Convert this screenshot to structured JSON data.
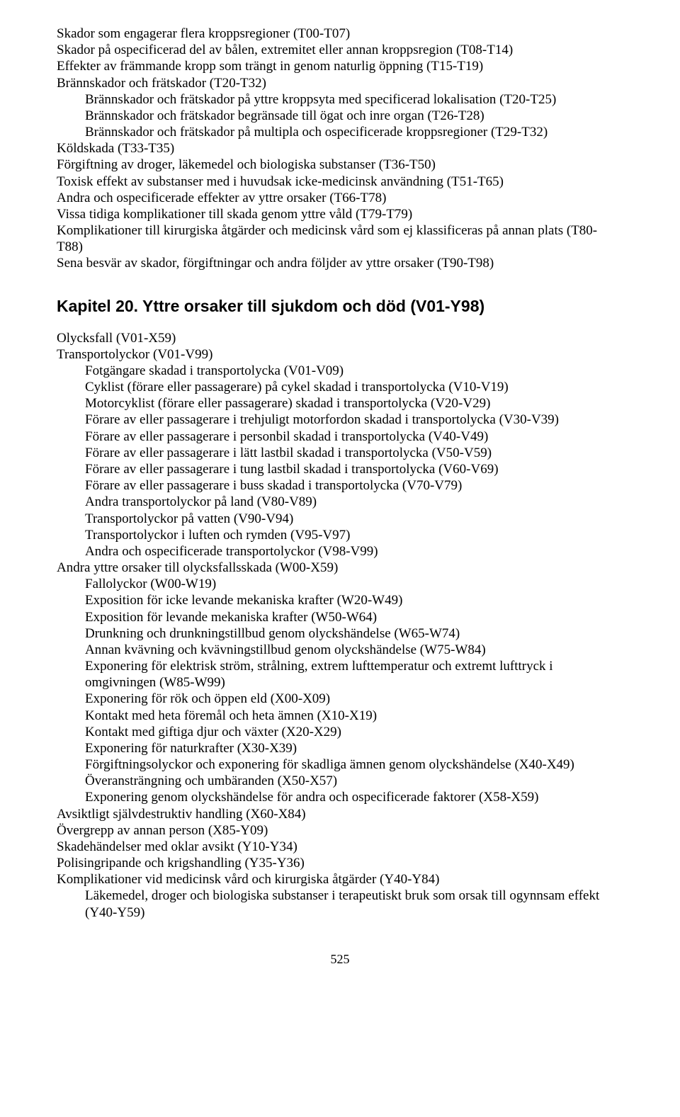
{
  "block1": {
    "lines": [
      {
        "text": "Skador som engagerar flera kroppsregioner (T00-T07)",
        "indent": 0
      },
      {
        "text": "Skador på ospecificerad del av bålen, extremitet eller annan kroppsregion (T08-T14)",
        "indent": 0
      },
      {
        "text": "Effekter av främmande kropp som trängt in genom naturlig öppning (T15-T19)",
        "indent": 0
      },
      {
        "text": "Brännskador och frätskador (T20-T32)",
        "indent": 0
      },
      {
        "text": "Brännskador och frätskador på yttre kroppsyta med specificerad lokalisation (T20-T25)",
        "indent": 1
      },
      {
        "text": "Brännskador och frätskador begränsade till ögat och inre organ (T26-T28)",
        "indent": 1
      },
      {
        "text": "Brännskador och frätskador på multipla och ospecificerade kroppsregioner (T29-T32)",
        "indent": 1
      },
      {
        "text": "Köldskada (T33-T35)",
        "indent": 0
      },
      {
        "text": "Förgiftning av droger, läkemedel och biologiska substanser (T36-T50)",
        "indent": 0
      },
      {
        "text": "Toxisk effekt av substanser med i huvudsak icke-medicinsk användning (T51-T65)",
        "indent": 0
      },
      {
        "text": "Andra och ospecificerade effekter av yttre orsaker (T66-T78)",
        "indent": 0
      },
      {
        "text": "Vissa tidiga komplikationer till skada genom yttre våld (T79-T79)",
        "indent": 0
      },
      {
        "text": "Komplikationer till kirurgiska åtgärder och medicinsk vård som ej klassificeras på annan plats (T80-T88)",
        "indent": 0
      },
      {
        "text": "Sena besvär av skador, förgiftningar och andra följder av yttre orsaker (T90-T98)",
        "indent": 0
      }
    ]
  },
  "chapter": {
    "title": "Kapitel 20. Yttre orsaker till sjukdom och död (V01-Y98)"
  },
  "block2": {
    "lines": [
      {
        "text": "Olycksfall (V01-X59)",
        "indent": 0
      },
      {
        "text": "Transportolyckor (V01-V99)",
        "indent": 0
      },
      {
        "text": "Fotgängare skadad i transportolycka (V01-V09)",
        "indent": 1
      },
      {
        "text": "Cyklist (förare eller passagerare) på cykel skadad i transportolycka (V10-V19)",
        "indent": 1
      },
      {
        "text": "Motorcyklist (förare eller passagerare) skadad i transportolycka (V20-V29)",
        "indent": 1
      },
      {
        "text": "Förare av eller passagerare i trehjuligt motorfordon skadad i transportolycka (V30-V39)",
        "indent": 1
      },
      {
        "text": "Förare av eller passagerare i personbil skadad i transportolycka (V40-V49)",
        "indent": 1
      },
      {
        "text": "Förare av eller passagerare i lätt lastbil skadad i transportolycka (V50-V59)",
        "indent": 1
      },
      {
        "text": "Förare av eller passagerare i tung lastbil skadad i transportolycka (V60-V69)",
        "indent": 1
      },
      {
        "text": "Förare av eller passagerare i buss skadad i transportolycka (V70-V79)",
        "indent": 1
      },
      {
        "text": "Andra transportolyckor på land (V80-V89)",
        "indent": 1
      },
      {
        "text": "Transportolyckor på vatten (V90-V94)",
        "indent": 1
      },
      {
        "text": "Transportolyckor i luften och rymden (V95-V97)",
        "indent": 1
      },
      {
        "text": "Andra och ospecificerade transportolyckor (V98-V99)",
        "indent": 1
      },
      {
        "text": "Andra yttre orsaker till olycksfallsskada (W00-X59)",
        "indent": 0
      },
      {
        "text": "Fallolyckor (W00-W19)",
        "indent": 1
      },
      {
        "text": "Exposition för icke levande mekaniska krafter (W20-W49)",
        "indent": 1
      },
      {
        "text": "Exposition för levande mekaniska krafter (W50-W64)",
        "indent": 1
      },
      {
        "text": "Drunkning och drunkningstillbud genom olyckshändelse (W65-W74)",
        "indent": 1
      },
      {
        "text": "Annan kvävning och kvävningstillbud genom olyckshändelse (W75-W84)",
        "indent": 1
      },
      {
        "text": "Exponering för elektrisk ström, strålning, extrem lufttemperatur och extremt lufttryck i omgivningen (W85-W99)",
        "indent": 1
      },
      {
        "text": "Exponering för rök och öppen eld (X00-X09)",
        "indent": 1
      },
      {
        "text": "Kontakt med heta föremål och heta ämnen (X10-X19)",
        "indent": 1
      },
      {
        "text": "Kontakt med giftiga djur och växter (X20-X29)",
        "indent": 1
      },
      {
        "text": "Exponering för naturkrafter (X30-X39)",
        "indent": 1
      },
      {
        "text": "Förgiftningsolyckor och exponering för skadliga ämnen genom olyckshändelse (X40-X49)",
        "indent": 1
      },
      {
        "text": "Överansträngning och umbäranden (X50-X57)",
        "indent": 1
      },
      {
        "text": "Exponering genom olyckshändelse för andra och ospecificerade faktorer (X58-X59)",
        "indent": 1
      },
      {
        "text": "Avsiktligt självdestruktiv handling (X60-X84)",
        "indent": 0
      },
      {
        "text": "Övergrepp av annan person (X85-Y09)",
        "indent": 0
      },
      {
        "text": "Skadehändelser med oklar avsikt (Y10-Y34)",
        "indent": 0
      },
      {
        "text": "Polisingripande och krigshandling (Y35-Y36)",
        "indent": 0
      },
      {
        "text": "Komplikationer vid medicinsk vård och kirurgiska åtgärder (Y40-Y84)",
        "indent": 0
      },
      {
        "text": "Läkemedel, droger och biologiska substanser i terapeutiskt bruk som orsak till ogynnsam effekt (Y40-Y59)",
        "indent": 1
      }
    ]
  },
  "page_number": "525"
}
